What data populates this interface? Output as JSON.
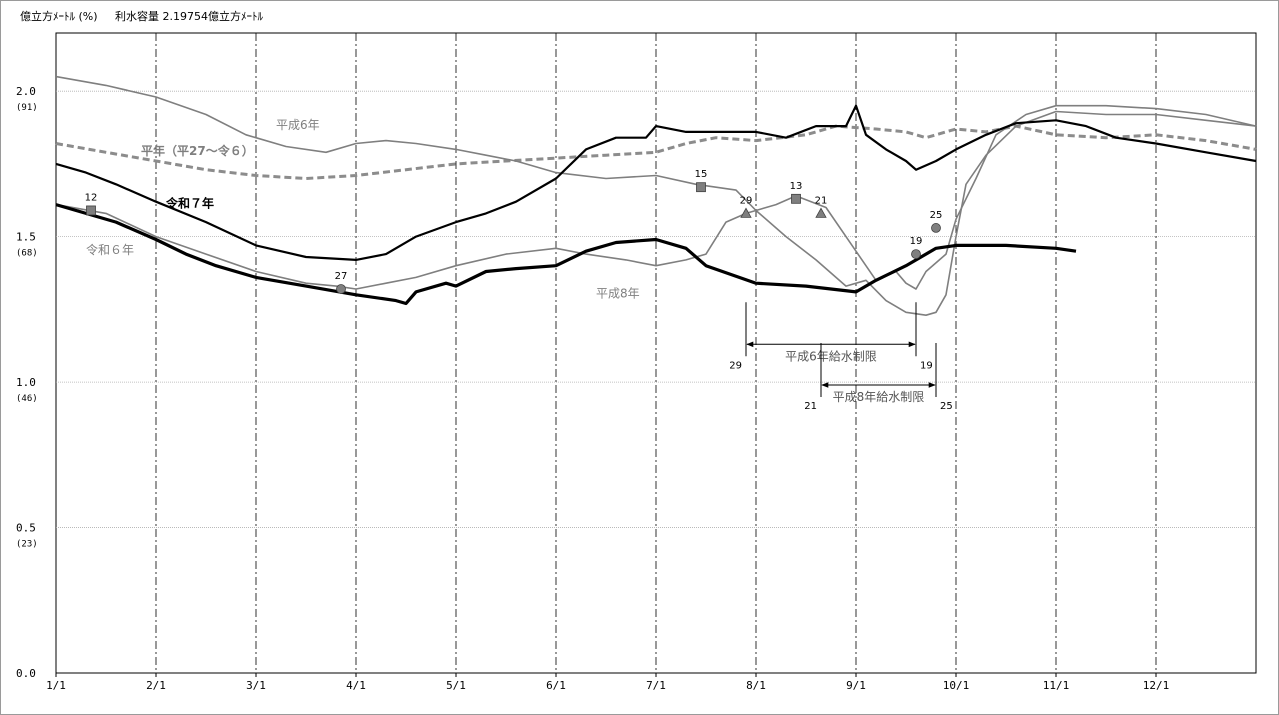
{
  "chart_data": {
    "type": "line",
    "header": {
      "unit": "億立方ﾒｰﾄﾙ (%)",
      "capacity": "利水容量 2.19754億立方ﾒｰﾄﾙ"
    },
    "ylim": [
      0,
      2.2
    ],
    "y_ticks": [
      {
        "value": 0.0,
        "label": "0.0",
        "pct": ""
      },
      {
        "value": 0.5,
        "label": "0.5",
        "pct": "(23)"
      },
      {
        "value": 1.0,
        "label": "1.0",
        "pct": "(46)"
      },
      {
        "value": 1.5,
        "label": "1.5",
        "pct": "(68)"
      },
      {
        "value": 2.0,
        "label": "2.0",
        "pct": "(91)"
      }
    ],
    "x_range": [
      0,
      12
    ],
    "x_ticks": [
      {
        "value": 0,
        "label": "1/1"
      },
      {
        "value": 1,
        "label": "2/1"
      },
      {
        "value": 2,
        "label": "3/1"
      },
      {
        "value": 3,
        "label": "4/1"
      },
      {
        "value": 4,
        "label": "5/1"
      },
      {
        "value": 5,
        "label": "6/1"
      },
      {
        "value": 6,
        "label": "7/1"
      },
      {
        "value": 7,
        "label": "8/1"
      },
      {
        "value": 8,
        "label": "9/1"
      },
      {
        "value": 9,
        "label": "10/1"
      },
      {
        "value": 10,
        "label": "11/1"
      },
      {
        "value": 11,
        "label": "12/1"
      }
    ],
    "grid": true,
    "series": [
      {
        "name": "平年（平27～令６）",
        "color": "#8c8c8c",
        "style": "dashed",
        "points": [
          [
            0,
            1.82
          ],
          [
            0.5,
            1.79
          ],
          [
            1,
            1.76
          ],
          [
            1.5,
            1.73
          ],
          [
            2,
            1.71
          ],
          [
            2.5,
            1.7
          ],
          [
            3,
            1.71
          ],
          [
            3.5,
            1.73
          ],
          [
            4,
            1.75
          ],
          [
            4.5,
            1.76
          ],
          [
            5,
            1.77
          ],
          [
            5.5,
            1.78
          ],
          [
            6,
            1.79
          ],
          [
            6.3,
            1.82
          ],
          [
            6.6,
            1.84
          ],
          [
            7,
            1.83
          ],
          [
            7.5,
            1.85
          ],
          [
            7.8,
            1.88
          ],
          [
            8.2,
            1.87
          ],
          [
            8.5,
            1.86
          ],
          [
            8.7,
            1.84
          ],
          [
            9,
            1.87
          ],
          [
            9.3,
            1.86
          ],
          [
            9.6,
            1.88
          ],
          [
            10,
            1.85
          ],
          [
            10.5,
            1.84
          ],
          [
            11,
            1.85
          ],
          [
            11.5,
            1.83
          ],
          [
            12,
            1.8
          ]
        ]
      },
      {
        "name": "平成6年",
        "color": "#7f7f7f",
        "style": "solid",
        "points": [
          [
            0,
            2.05
          ],
          [
            0.5,
            2.02
          ],
          [
            1,
            1.98
          ],
          [
            1.5,
            1.92
          ],
          [
            1.9,
            1.85
          ],
          [
            2.3,
            1.81
          ],
          [
            2.7,
            1.79
          ],
          [
            3,
            1.82
          ],
          [
            3.3,
            1.83
          ],
          [
            3.6,
            1.82
          ],
          [
            4,
            1.8
          ],
          [
            4.3,
            1.78
          ],
          [
            4.6,
            1.76
          ],
          [
            5,
            1.72
          ],
          [
            5.5,
            1.7
          ],
          [
            6,
            1.71
          ],
          [
            6.4,
            1.68
          ],
          [
            6.8,
            1.66
          ],
          [
            7,
            1.59
          ],
          [
            7.3,
            1.5
          ],
          [
            7.6,
            1.42
          ],
          [
            7.9,
            1.33
          ],
          [
            8.1,
            1.35
          ],
          [
            8.3,
            1.28
          ],
          [
            8.5,
            1.24
          ],
          [
            8.7,
            1.23
          ],
          [
            8.8,
            1.24
          ],
          [
            8.9,
            1.3
          ],
          [
            9,
            1.5
          ],
          [
            9.1,
            1.68
          ],
          [
            9.3,
            1.78
          ],
          [
            9.6,
            1.88
          ],
          [
            10,
            1.93
          ],
          [
            10.5,
            1.92
          ],
          [
            11,
            1.92
          ],
          [
            11.5,
            1.9
          ],
          [
            12,
            1.88
          ]
        ]
      },
      {
        "name": "平成8年",
        "color": "#7f7f7f",
        "style": "solid",
        "points": [
          [
            0,
            1.61
          ],
          [
            0.5,
            1.58
          ],
          [
            1,
            1.5
          ],
          [
            1.5,
            1.44
          ],
          [
            2,
            1.38
          ],
          [
            2.5,
            1.34
          ],
          [
            2.8,
            1.33
          ],
          [
            3,
            1.32
          ],
          [
            3.3,
            1.34
          ],
          [
            3.6,
            1.36
          ],
          [
            4,
            1.4
          ],
          [
            4.5,
            1.44
          ],
          [
            5,
            1.46
          ],
          [
            5.3,
            1.44
          ],
          [
            5.7,
            1.42
          ],
          [
            6,
            1.4
          ],
          [
            6.3,
            1.42
          ],
          [
            6.5,
            1.44
          ],
          [
            6.7,
            1.55
          ],
          [
            6.9,
            1.58
          ],
          [
            7.2,
            1.61
          ],
          [
            7.4,
            1.64
          ],
          [
            7.7,
            1.6
          ],
          [
            8,
            1.45
          ],
          [
            8.2,
            1.35
          ],
          [
            8.4,
            1.38
          ],
          [
            8.5,
            1.34
          ],
          [
            8.6,
            1.32
          ],
          [
            8.7,
            1.38
          ],
          [
            8.9,
            1.44
          ],
          [
            9,
            1.56
          ],
          [
            9.2,
            1.7
          ],
          [
            9.4,
            1.85
          ],
          [
            9.7,
            1.92
          ],
          [
            10,
            1.95
          ],
          [
            10.5,
            1.95
          ],
          [
            11,
            1.94
          ],
          [
            11.5,
            1.92
          ],
          [
            12,
            1.88
          ]
        ]
      },
      {
        "name": "令和６年",
        "color": "#000000",
        "style": "solid",
        "points": [
          [
            0,
            1.75
          ],
          [
            0.3,
            1.72
          ],
          [
            0.6,
            1.68
          ],
          [
            1,
            1.62
          ],
          [
            1.5,
            1.55
          ],
          [
            2,
            1.47
          ],
          [
            2.5,
            1.43
          ],
          [
            3,
            1.42
          ],
          [
            3.3,
            1.44
          ],
          [
            3.6,
            1.5
          ],
          [
            4,
            1.55
          ],
          [
            4.3,
            1.58
          ],
          [
            4.6,
            1.62
          ],
          [
            5,
            1.7
          ],
          [
            5.3,
            1.8
          ],
          [
            5.6,
            1.84
          ],
          [
            5.9,
            1.84
          ],
          [
            6,
            1.88
          ],
          [
            6.3,
            1.86
          ],
          [
            6.6,
            1.86
          ],
          [
            7,
            1.86
          ],
          [
            7.3,
            1.84
          ],
          [
            7.6,
            1.88
          ],
          [
            7.9,
            1.88
          ],
          [
            8,
            1.95
          ],
          [
            8.1,
            1.85
          ],
          [
            8.3,
            1.8
          ],
          [
            8.5,
            1.76
          ],
          [
            8.6,
            1.73
          ],
          [
            8.8,
            1.76
          ],
          [
            9,
            1.8
          ],
          [
            9.3,
            1.85
          ],
          [
            9.6,
            1.89
          ],
          [
            10,
            1.9
          ],
          [
            10.3,
            1.88
          ],
          [
            10.6,
            1.84
          ],
          [
            11,
            1.82
          ],
          [
            11.5,
            1.79
          ],
          [
            12,
            1.76
          ]
        ]
      },
      {
        "name": "令和７年",
        "color": "#000000",
        "style": "bold",
        "points": [
          [
            0,
            1.61
          ],
          [
            0.3,
            1.58
          ],
          [
            0.6,
            1.55
          ],
          [
            1,
            1.49
          ],
          [
            1.3,
            1.44
          ],
          [
            1.6,
            1.4
          ],
          [
            2,
            1.36
          ],
          [
            2.5,
            1.33
          ],
          [
            3,
            1.3
          ],
          [
            3.4,
            1.28
          ],
          [
            3.5,
            1.27
          ],
          [
            3.6,
            1.31
          ],
          [
            3.9,
            1.34
          ],
          [
            4,
            1.33
          ],
          [
            4.3,
            1.38
          ],
          [
            4.6,
            1.39
          ],
          [
            5,
            1.4
          ],
          [
            5.3,
            1.45
          ],
          [
            5.6,
            1.48
          ],
          [
            6,
            1.49
          ],
          [
            6.3,
            1.46
          ],
          [
            6.5,
            1.4
          ],
          [
            7,
            1.34
          ],
          [
            7.5,
            1.33
          ],
          [
            8,
            1.31
          ],
          [
            8.2,
            1.35
          ],
          [
            8.5,
            1.4
          ],
          [
            8.8,
            1.46
          ],
          [
            9,
            1.47
          ],
          [
            9.5,
            1.47
          ],
          [
            10,
            1.46
          ],
          [
            10.2,
            1.45
          ]
        ]
      }
    ],
    "series_labels": [
      {
        "text": "平成6年",
        "x": 2.2,
        "y": 1.87,
        "color": "#7f7f7f",
        "weight": "normal"
      },
      {
        "text": "平年（平27～令６）",
        "x": 0.85,
        "y": 1.78,
        "color": "#7f7f7f",
        "weight": "bold"
      },
      {
        "text": "令和７年",
        "x": 1.1,
        "y": 1.6,
        "color": "#000000",
        "weight": "bold"
      },
      {
        "text": "令和６年",
        "x": 0.3,
        "y": 1.44,
        "color": "#7f7f7f",
        "weight": "normal"
      },
      {
        "text": "平成8年",
        "x": 5.4,
        "y": 1.29,
        "color": "#7f7f7f",
        "weight": "normal"
      }
    ],
    "markers": [
      {
        "shape": "square",
        "x": 0.35,
        "y": 1.59,
        "label": "12"
      },
      {
        "shape": "circle",
        "x": 2.85,
        "y": 1.32,
        "label": "27"
      },
      {
        "shape": "square",
        "x": 6.45,
        "y": 1.67,
        "label": "15"
      },
      {
        "shape": "triangle",
        "x": 6.9,
        "y": 1.58,
        "label": "29"
      },
      {
        "shape": "square",
        "x": 7.4,
        "y": 1.63,
        "label": "13"
      },
      {
        "shape": "triangle",
        "x": 7.65,
        "y": 1.58,
        "label": "21"
      },
      {
        "shape": "circle",
        "x": 8.6,
        "y": 1.44,
        "label": "19"
      },
      {
        "shape": "circle",
        "x": 8.8,
        "y": 1.53,
        "label": "25"
      }
    ],
    "restrictions": [
      {
        "label": "平成6年給水制限",
        "from": 6.9,
        "to": 8.6,
        "y": 1.13,
        "from_label": "29",
        "to_label": "19"
      },
      {
        "label": "平成8年給水制限",
        "from": 7.65,
        "to": 8.8,
        "y": 0.99,
        "from_label": "21",
        "to_label": "25"
      }
    ]
  }
}
